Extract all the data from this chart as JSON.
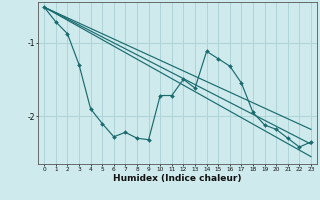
{
  "xlabel": "Humidex (Indice chaleur)",
  "ylabel": "",
  "background_color": "#ceeaed",
  "grid_color": "#aed4d8",
  "line_color": "#1a6b6e",
  "xlim": [
    -0.5,
    23.5
  ],
  "ylim": [
    -2.65,
    -0.45
  ],
  "yticks": [
    -2,
    -1
  ],
  "xticks": [
    0,
    1,
    2,
    3,
    4,
    5,
    6,
    7,
    8,
    9,
    10,
    11,
    12,
    13,
    14,
    15,
    16,
    17,
    18,
    19,
    20,
    21,
    22,
    23
  ],
  "line1_x": [
    0,
    1,
    2,
    3,
    4,
    5,
    6,
    7,
    8,
    9,
    10,
    11,
    12,
    13,
    14,
    15,
    16,
    17,
    18,
    19,
    20,
    21,
    22,
    23
  ],
  "line1_y": [
    -0.52,
    -0.72,
    -0.88,
    -1.3,
    -1.9,
    -2.1,
    -2.28,
    -2.22,
    -2.3,
    -2.32,
    -1.72,
    -1.72,
    -1.5,
    -1.62,
    -1.12,
    -1.22,
    -1.32,
    -1.55,
    -1.95,
    -2.12,
    -2.18,
    -2.3,
    -2.42,
    -2.35
  ],
  "line2_x": [
    0,
    23
  ],
  "line2_y": [
    -0.52,
    -2.55
  ],
  "line3_x": [
    0,
    23
  ],
  "line3_y": [
    -0.52,
    -2.38
  ],
  "line4_x": [
    0,
    23
  ],
  "line4_y": [
    -0.52,
    -2.18
  ]
}
